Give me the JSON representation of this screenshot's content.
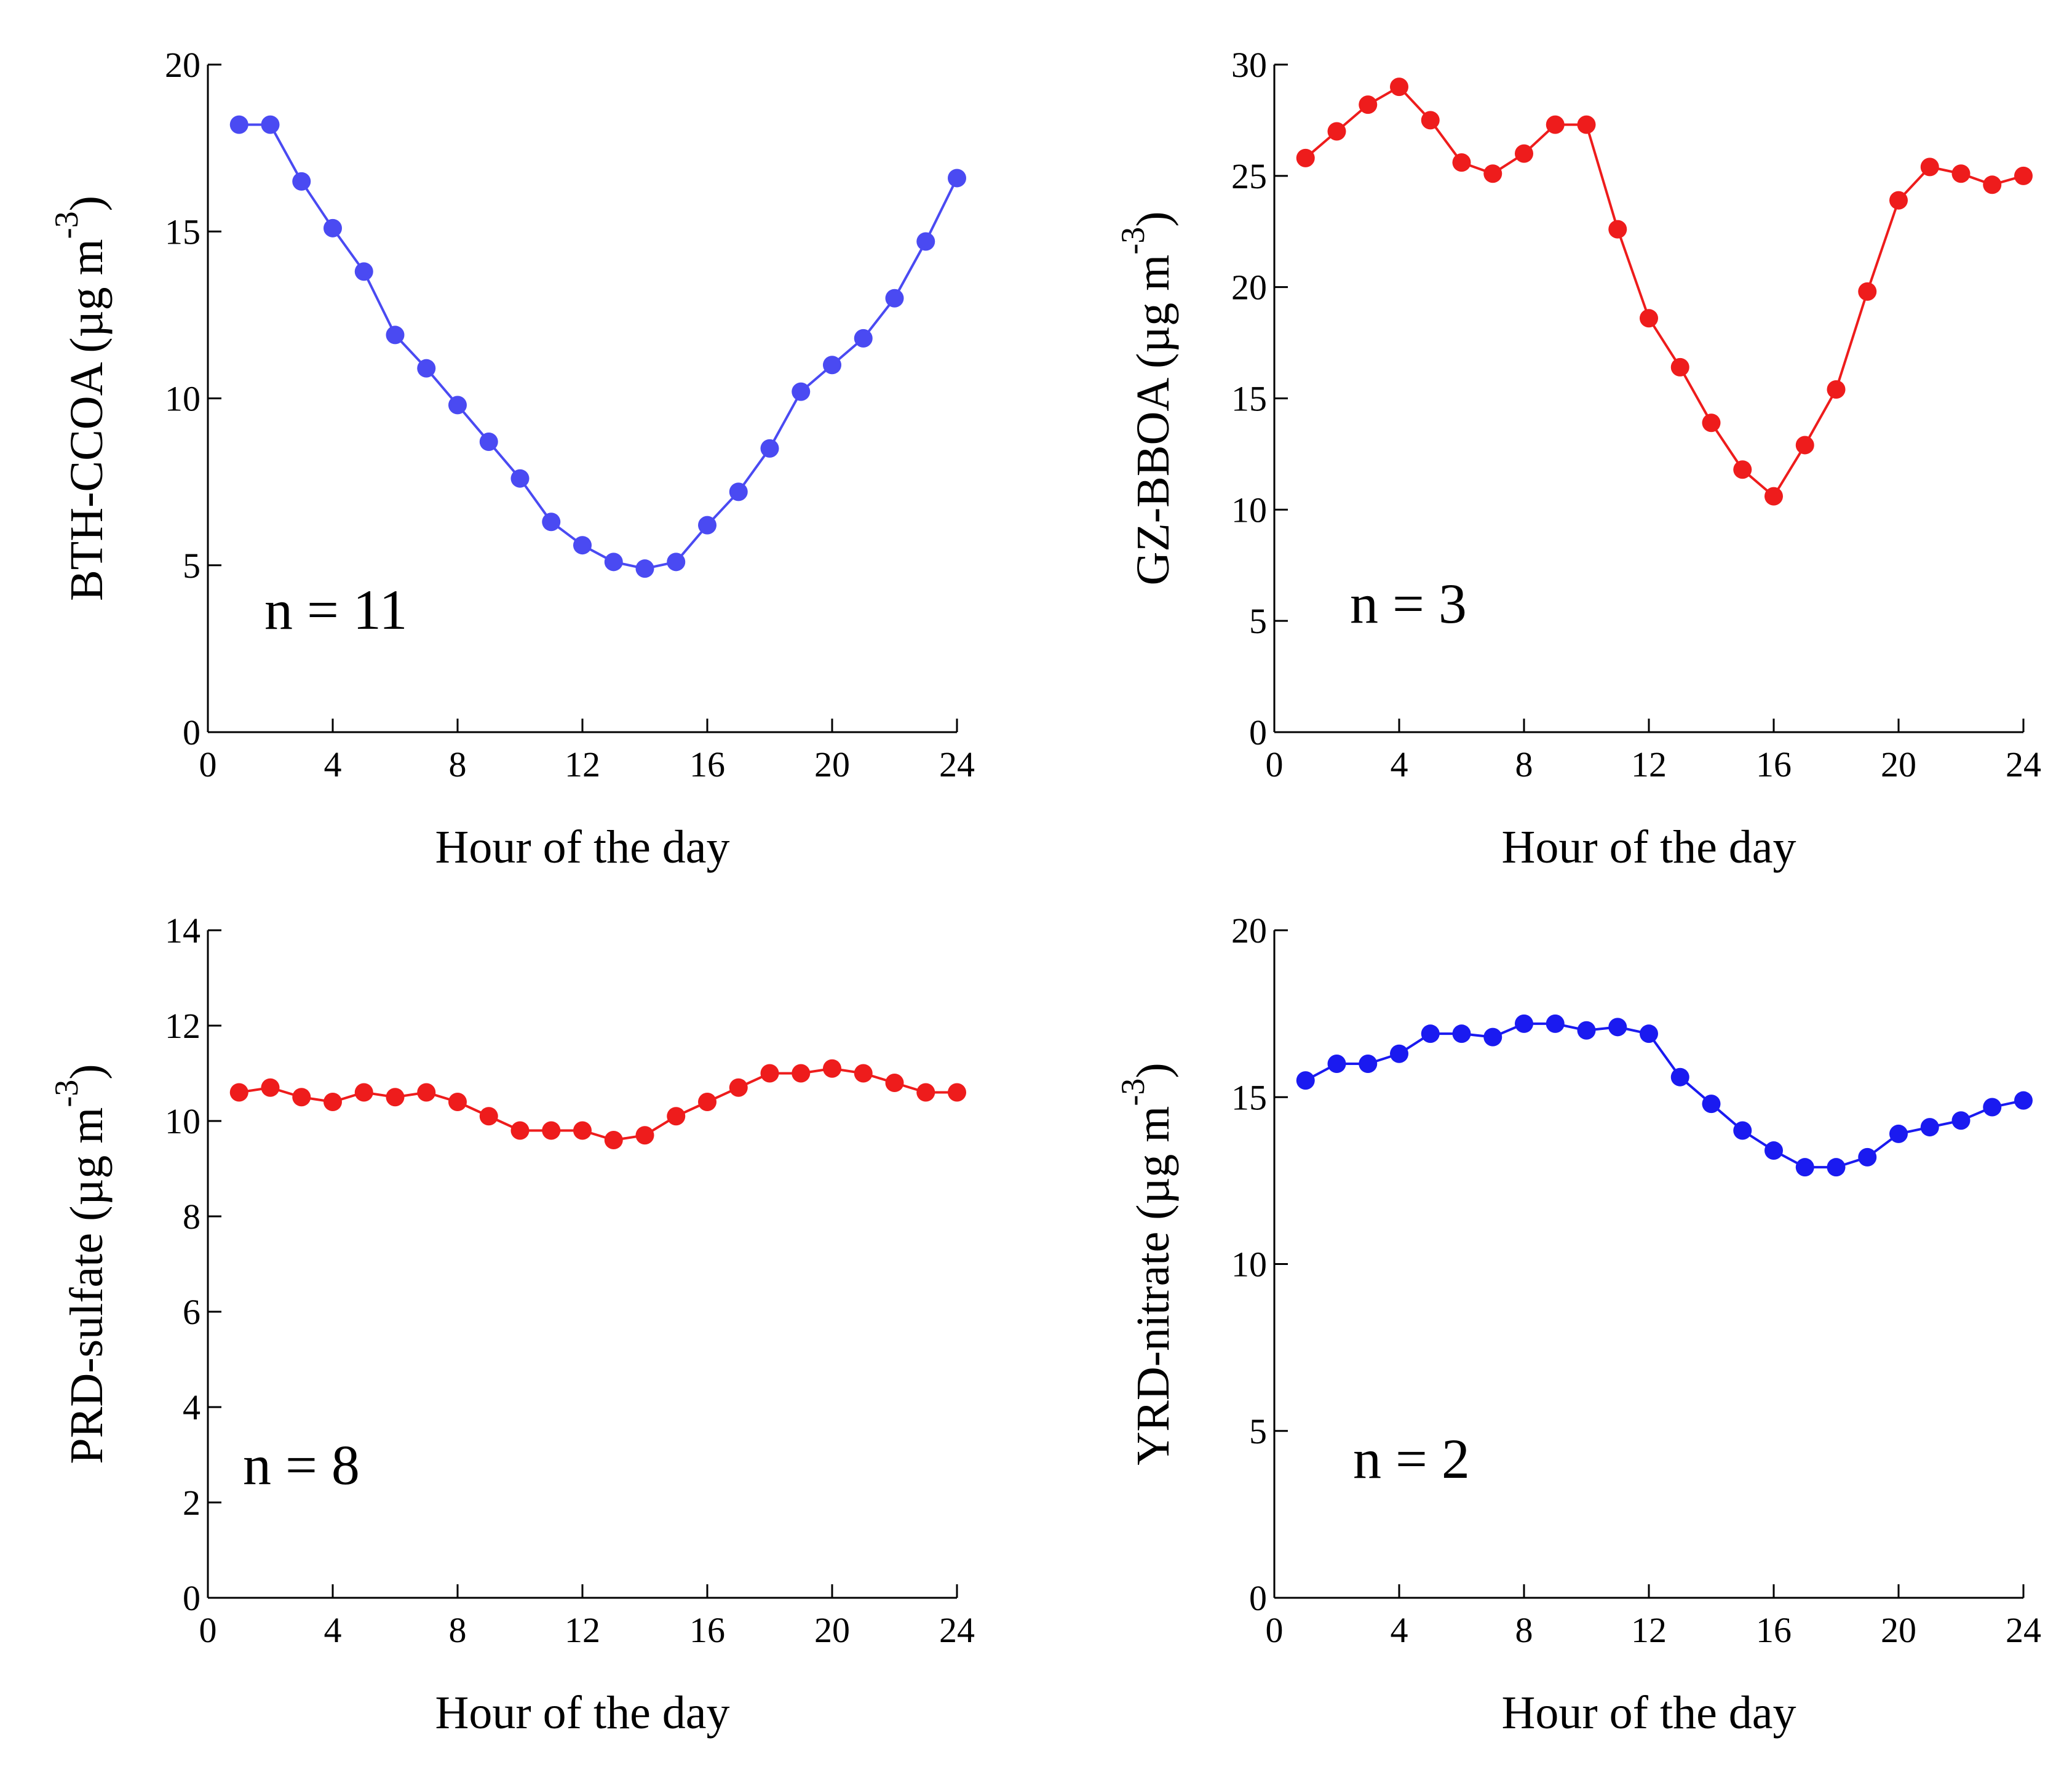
{
  "figure": {
    "xlabel": "Hour of the day"
  },
  "chart_data": [
    {
      "type": "line",
      "id": "bth",
      "series": [
        {
          "name": "BTH-CCOA",
          "color": "#4a4af2",
          "x": [
            1,
            2,
            3,
            4,
            5,
            6,
            7,
            8,
            9,
            10,
            11,
            12,
            13,
            14,
            15,
            16,
            17,
            18,
            19,
            20,
            21,
            22,
            23,
            24
          ],
          "values": [
            18.2,
            18.2,
            16.5,
            15.1,
            13.8,
            11.9,
            10.9,
            9.8,
            8.7,
            7.6,
            6.3,
            5.6,
            5.1,
            4.9,
            5.1,
            6.2,
            7.2,
            8.5,
            10.2,
            11.0,
            11.8,
            13.0,
            14.7,
            16.6
          ]
        }
      ],
      "ylabel_main": "BTH-CCOA (µg m",
      "ylabel_sup": "-3",
      "ylabel_close": ")",
      "xlabel": "Hour of the day",
      "annotation": "n = 11",
      "xlim": [
        0,
        24
      ],
      "ylim": [
        0,
        20
      ],
      "xticks": [
        0,
        4,
        8,
        12,
        16,
        20,
        24
      ],
      "yticks": [
        0,
        5,
        10,
        15,
        20
      ]
    },
    {
      "type": "line",
      "id": "gz",
      "series": [
        {
          "name": "GZ-BBOA",
          "color": "#ee1c1c",
          "x": [
            1,
            2,
            3,
            4,
            5,
            6,
            7,
            8,
            9,
            10,
            11,
            12,
            13,
            14,
            15,
            16,
            17,
            18,
            19,
            20,
            21,
            22,
            23,
            24
          ],
          "values": [
            25.8,
            27.0,
            28.2,
            29.0,
            27.5,
            25.6,
            25.1,
            26.0,
            27.3,
            27.3,
            22.6,
            18.6,
            16.4,
            13.9,
            11.8,
            10.6,
            12.9,
            15.4,
            19.8,
            23.9,
            25.4,
            25.1,
            24.6,
            25.0
          ]
        }
      ],
      "ylabel_main": "GZ-BBOA (µg m",
      "ylabel_sup": "-3",
      "ylabel_close": ")",
      "xlabel": "Hour of the day",
      "annotation": "n = 3",
      "xlim": [
        0,
        24
      ],
      "ylim": [
        0,
        30
      ],
      "xticks": [
        0,
        4,
        8,
        12,
        16,
        20,
        24
      ],
      "yticks": [
        0,
        5,
        10,
        15,
        20,
        25,
        30
      ]
    },
    {
      "type": "line",
      "id": "prd",
      "series": [
        {
          "name": "PRD-sulfate",
          "color": "#ee1c1c",
          "x": [
            1,
            2,
            3,
            4,
            5,
            6,
            7,
            8,
            9,
            10,
            11,
            12,
            13,
            14,
            15,
            16,
            17,
            18,
            19,
            20,
            21,
            22,
            23,
            24
          ],
          "values": [
            10.6,
            10.7,
            10.5,
            10.4,
            10.6,
            10.5,
            10.6,
            10.4,
            10.1,
            9.8,
            9.8,
            9.8,
            9.6,
            9.7,
            10.1,
            10.4,
            10.7,
            11.0,
            11.0,
            11.1,
            11.0,
            10.8,
            10.6,
            10.6
          ]
        }
      ],
      "ylabel_main": "PRD-sulfate (µg m",
      "ylabel_sup": "-3",
      "ylabel_close": ")",
      "xlabel": "Hour of the day",
      "annotation": "n = 8",
      "xlim": [
        0,
        24
      ],
      "ylim": [
        0,
        14
      ],
      "xticks": [
        0,
        4,
        8,
        12,
        16,
        20,
        24
      ],
      "yticks": [
        0,
        2,
        4,
        6,
        8,
        10,
        12,
        14
      ]
    },
    {
      "type": "line",
      "id": "yrd",
      "series": [
        {
          "name": "YRD-nitrate",
          "color": "#1a1af0",
          "x": [
            1,
            2,
            3,
            4,
            5,
            6,
            7,
            8,
            9,
            10,
            11,
            12,
            13,
            14,
            15,
            16,
            17,
            18,
            19,
            20,
            21,
            22,
            23,
            24
          ],
          "values": [
            15.5,
            16.0,
            16.0,
            16.3,
            16.9,
            16.9,
            16.8,
            17.2,
            17.2,
            17.0,
            17.1,
            16.9,
            15.6,
            14.8,
            14.0,
            13.4,
            12.9,
            12.9,
            13.2,
            13.9,
            14.1,
            14.3,
            14.7,
            14.9
          ]
        }
      ],
      "ylabel_main": "YRD-nitrate (µg m",
      "ylabel_sup": "-3",
      "ylabel_close": ")",
      "xlabel": "Hour of the day",
      "annotation": "n = 2",
      "xlim": [
        0,
        24
      ],
      "ylim": [
        0,
        20
      ],
      "xticks": [
        0,
        4,
        8,
        12,
        16,
        20,
        24
      ],
      "yticks": [
        0,
        5,
        10,
        15,
        20
      ]
    }
  ]
}
